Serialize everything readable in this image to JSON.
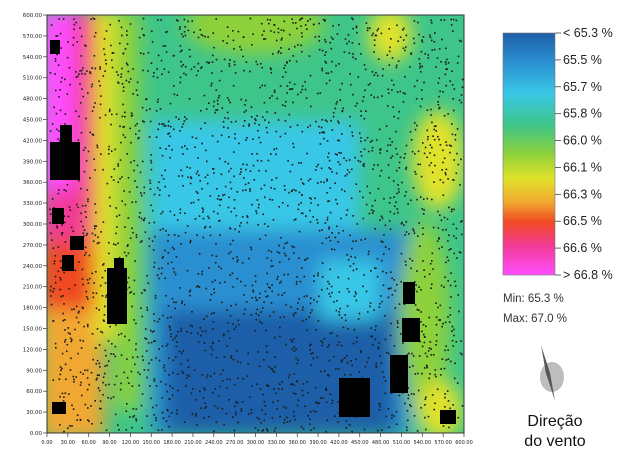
{
  "chart_data": {
    "type": "heatmap",
    "title": "",
    "xlabel": "",
    "ylabel": "",
    "x_ticks": [
      "0.00",
      "30.00",
      "60.00",
      "90.00",
      "120.00",
      "150.00",
      "180.00",
      "210.00",
      "240.00",
      "270.00",
      "300.00",
      "330.00",
      "360.00",
      "390.00",
      "420.00",
      "450.00",
      "480.00",
      "510.00",
      "540.00",
      "570.00",
      "600.00"
    ],
    "y_ticks": [
      "0.00",
      "30.00",
      "60.00",
      "90.00",
      "120.00",
      "150.00",
      "180.00",
      "210.00",
      "240.00",
      "270.00",
      "300.00",
      "330.00",
      "360.00",
      "390.00",
      "420.00",
      "450.00",
      "480.00",
      "510.00",
      "540.00",
      "570.00",
      "600.00"
    ],
    "xlim": [
      0,
      600
    ],
    "ylim": [
      0,
      600
    ],
    "colorbar": {
      "labels": [
        "< 65.3 %",
        "65.5 %",
        "65.7 %",
        "65.8 %",
        "66.0 %",
        "66.1 %",
        "66.3 %",
        "66.5 %",
        "66.6 %",
        "> 66.8 %"
      ],
      "colors": [
        "#1d5fa8",
        "#2a8fd0",
        "#39c7e6",
        "#3ec58a",
        "#8dd13a",
        "#e0e22a",
        "#f0a830",
        "#f04a22",
        "#f23a96",
        "#ff4dff"
      ]
    },
    "min_label": "Min: 65.3 %",
    "max_label": "Max: 67.0 %",
    "legend_position": "right"
  },
  "wind": {
    "line1": "Direção",
    "line2": "do vento",
    "icon": "wind-direction-arrow-icon"
  }
}
